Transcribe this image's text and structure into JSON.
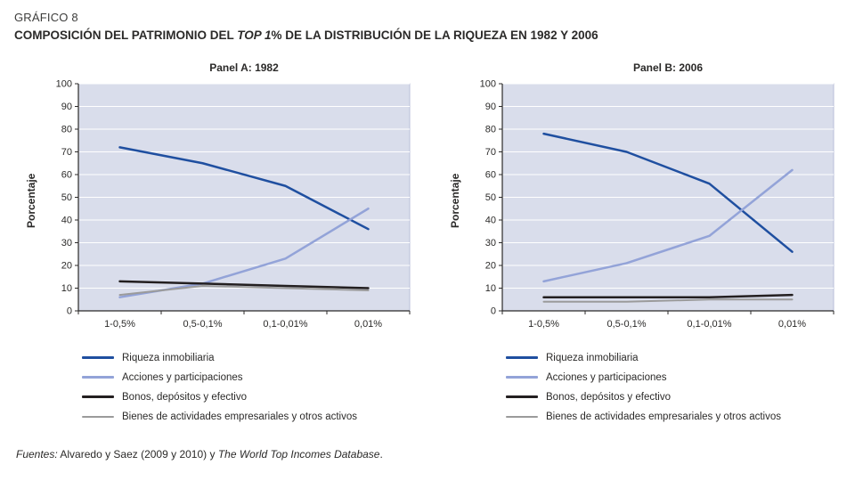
{
  "header": {
    "kicker": "GRÁFICO 8",
    "title_pre": "COMPOSICIÓN DEL PATRIMONIO DEL ",
    "title_italic": "TOP 1",
    "title_post": "% DE LA DISTRIBUCIÓN DE LA RIQUEZA EN 1982 Y 2006"
  },
  "footer": {
    "label": "Fuentes:",
    "mid": " Alvaredo y Saez (2009 y 2010) y ",
    "italic_tail": "The World Top Incomes Database",
    "end": "."
  },
  "colors": {
    "plot_background": "#d9ddeb",
    "plot_border": "#b9bfd8",
    "axis": "#2b2a29",
    "gridline": "#ffffff",
    "series_riqueza": "#1f4fa0",
    "series_acciones": "#93a3d8",
    "series_bonos": "#231f20",
    "series_bienes": "#9b9b9b"
  },
  "chart_data": [
    {
      "type": "line",
      "title": "Panel A: 1982",
      "ylabel": "Porcentaje",
      "ylim": [
        0,
        100
      ],
      "ytick_step": 10,
      "grid": "horizontal",
      "legend_position": "bottom-left",
      "plot_bg": "#d9ddeb",
      "plot_border": "#b9bfd8",
      "axis_color": "#2b2a29",
      "categories": [
        "1-0,5%",
        "0,5-0,1%",
        "0,1-0,01%",
        "0,01%"
      ],
      "series": [
        {
          "name": "Riqueza inmobiliaria",
          "color": "#1f4fa0",
          "width": 2.5,
          "values": [
            72,
            65,
            55,
            36
          ]
        },
        {
          "name": "Acciones y participaciones",
          "color": "#93a3d8",
          "width": 2.5,
          "values": [
            6,
            12,
            23,
            45
          ]
        },
        {
          "name": "Bonos, depósitos y efectivo",
          "color": "#231f20",
          "width": 2.5,
          "values": [
            13,
            12,
            11,
            10
          ]
        },
        {
          "name": "Bienes de actividades empresariales y otros activos",
          "color": "#9b9b9b",
          "width": 2,
          "values": [
            7,
            11,
            10,
            9
          ]
        }
      ]
    },
    {
      "type": "line",
      "title": "Panel B: 2006",
      "ylabel": "Porcentaje",
      "ylim": [
        0,
        100
      ],
      "ytick_step": 10,
      "grid": "horizontal",
      "legend_position": "bottom-left",
      "plot_bg": "#d9ddeb",
      "plot_border": "#b9bfd8",
      "axis_color": "#2b2a29",
      "categories": [
        "1-0,5%",
        "0,5-0,1%",
        "0,1-0,01%",
        "0,01%"
      ],
      "series": [
        {
          "name": "Riqueza inmobiliaria",
          "color": "#1f4fa0",
          "width": 2.5,
          "values": [
            78,
            70,
            56,
            26
          ]
        },
        {
          "name": "Acciones y participaciones",
          "color": "#93a3d8",
          "width": 2.5,
          "values": [
            13,
            21,
            33,
            62
          ]
        },
        {
          "name": "Bonos, depósitos y efectivo",
          "color": "#231f20",
          "width": 2.5,
          "values": [
            6,
            6,
            6,
            7
          ]
        },
        {
          "name": "Bienes de actividades empresariales y otros activos",
          "color": "#9b9b9b",
          "width": 2,
          "values": [
            4,
            4,
            5,
            5
          ]
        }
      ]
    }
  ]
}
